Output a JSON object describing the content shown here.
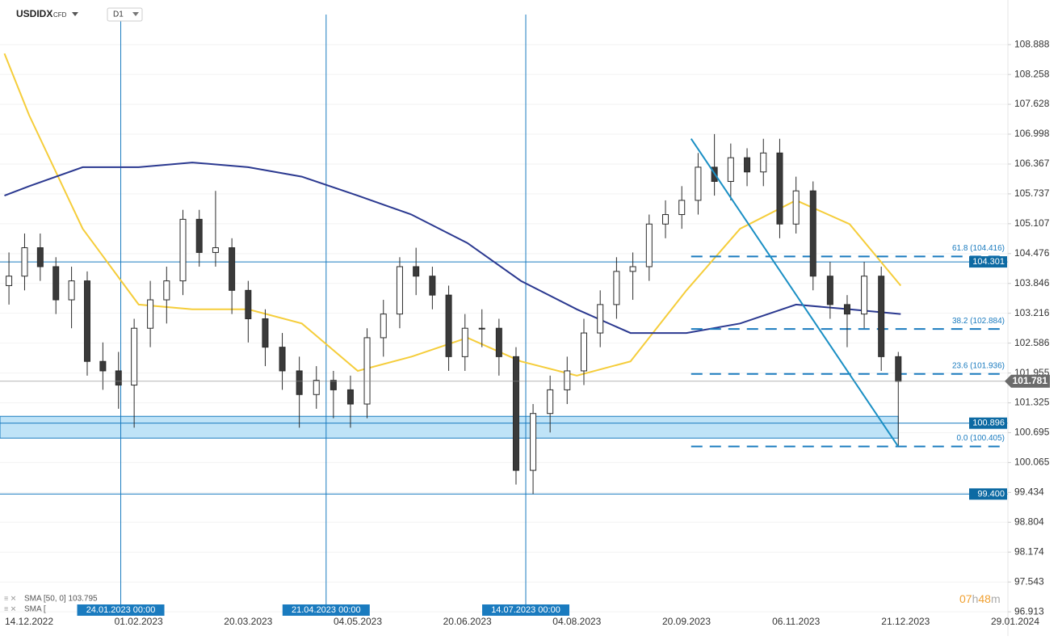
{
  "chart_data": {
    "type": "candlestick",
    "title": "USDIDX",
    "subtitle": "CFD",
    "timeframe": "D1",
    "x": [
      "05.12.2022",
      "12.12.2022",
      "19.12.2022",
      "26.12.2022",
      "02.01.2023",
      "09.01.2023",
      "16.01.2023",
      "23.01.2023",
      "30.01.2023",
      "06.02.2023",
      "13.02.2023",
      "20.02.2023",
      "27.02.2023",
      "06.03.2023",
      "13.03.2023",
      "20.03.2023",
      "27.03.2023",
      "03.04.2023",
      "10.04.2023",
      "17.04.2023",
      "24.04.2023",
      "01.05.2023",
      "08.05.2023",
      "15.05.2023",
      "22.05.2023",
      "29.05.2023",
      "05.06.2023",
      "12.06.2023",
      "19.06.2023",
      "26.06.2023",
      "03.07.2023",
      "10.07.2023",
      "17.07.2023",
      "24.07.2023",
      "31.07.2023",
      "07.08.2023",
      "14.08.2023",
      "21.08.2023",
      "28.08.2023",
      "04.09.2023",
      "11.09.2023",
      "18.09.2023",
      "25.09.2023",
      "02.10.2023",
      "09.10.2023",
      "16.10.2023",
      "23.10.2023",
      "30.10.2023",
      "06.11.2023",
      "13.11.2023",
      "20.11.2023",
      "27.11.2023",
      "04.12.2023",
      "11.12.2023",
      "18.12.2023"
    ],
    "open": [
      103.8,
      104.0,
      104.6,
      104.2,
      103.5,
      103.9,
      102.2,
      102.0,
      101.7,
      102.9,
      103.5,
      103.9,
      105.2,
      104.5,
      104.6,
      103.7,
      103.1,
      102.5,
      102.0,
      101.5,
      101.8,
      101.6,
      101.3,
      102.7,
      103.2,
      104.2,
      104.0,
      103.6,
      102.3,
      102.9,
      102.9,
      102.3,
      99.9,
      101.1,
      101.6,
      102.0,
      102.8,
      103.4,
      104.1,
      104.2,
      105.1,
      105.3,
      105.6,
      106.3,
      106.0,
      106.5,
      106.2,
      106.6,
      105.1,
      105.8,
      104.0,
      103.4,
      103.2,
      104.0,
      102.3
    ],
    "high": [
      104.5,
      104.9,
      104.9,
      104.4,
      104.2,
      104.1,
      102.6,
      102.4,
      103.1,
      103.9,
      104.2,
      105.4,
      105.4,
      105.8,
      104.8,
      103.9,
      103.3,
      102.8,
      102.3,
      102.1,
      102.0,
      101.9,
      102.9,
      103.5,
      104.4,
      104.6,
      104.2,
      103.8,
      103.2,
      103.3,
      103.1,
      102.5,
      101.3,
      101.9,
      102.3,
      103.1,
      103.7,
      104.4,
      104.5,
      105.3,
      105.6,
      105.9,
      106.6,
      107.0,
      106.8,
      106.7,
      106.9,
      106.9,
      106.1,
      106.0,
      104.3,
      103.6,
      104.3,
      104.2,
      102.4
    ],
    "low": [
      103.4,
      103.7,
      103.9,
      103.2,
      102.9,
      101.9,
      101.6,
      101.2,
      100.8,
      102.5,
      103.0,
      103.6,
      104.2,
      104.2,
      103.2,
      102.6,
      102.1,
      101.6,
      100.8,
      101.2,
      101.0,
      100.8,
      101.0,
      102.3,
      102.9,
      103.6,
      103.3,
      102.0,
      102.0,
      102.5,
      101.9,
      99.6,
      99.4,
      100.7,
      101.3,
      101.7,
      102.5,
      103.1,
      103.5,
      103.9,
      104.8,
      105.0,
      105.3,
      105.7,
      105.6,
      105.9,
      105.9,
      104.8,
      104.9,
      103.7,
      103.1,
      102.5,
      102.9,
      102.0,
      100.4
    ],
    "close": [
      104.0,
      104.6,
      104.2,
      103.5,
      103.9,
      102.2,
      102.0,
      101.7,
      102.9,
      103.5,
      103.9,
      105.2,
      104.5,
      104.6,
      103.7,
      103.1,
      102.5,
      102.0,
      101.5,
      101.8,
      101.6,
      101.3,
      102.7,
      103.2,
      104.2,
      104.0,
      103.6,
      102.3,
      102.9,
      102.9,
      102.3,
      99.9,
      101.1,
      101.6,
      102.0,
      102.8,
      103.4,
      104.1,
      104.2,
      105.1,
      105.3,
      105.6,
      106.3,
      106.0,
      106.5,
      106.2,
      106.6,
      105.1,
      105.8,
      104.0,
      103.4,
      103.2,
      104.0,
      102.3,
      101.78
    ],
    "up_color": "#ffffff",
    "down_color": "#3a3a3a",
    "wick_color": "#2b2b2b",
    "overlays": [
      {
        "name": "SMA [50, 0] 103.795",
        "color": "#f5cd3a",
        "x": [
          "03.12.2022",
          "14.12.2022",
          "07.01.2023",
          "01.02.2023",
          "24.02.2023",
          "20.03.2023",
          "11.04.2023",
          "04.05.2023",
          "27.05.2023",
          "20.06.2023",
          "12.07.2023",
          "04.08.2023",
          "27.08.2023",
          "20.09.2023",
          "13.10.2023",
          "06.11.2023",
          "28.11.2023",
          "19.12.2023"
        ],
        "values": [
          108.7,
          107.4,
          105.0,
          103.4,
          103.3,
          103.3,
          103.0,
          102.0,
          102.3,
          102.7,
          102.2,
          101.9,
          102.2,
          103.7,
          105.0,
          105.6,
          105.1,
          103.8
        ]
      },
      {
        "name": "SMA [",
        "color": "#2b3990",
        "x": [
          "03.12.2022",
          "14.12.2022",
          "07.01.2023",
          "01.02.2023",
          "24.02.2023",
          "20.03.2023",
          "11.04.2023",
          "04.05.2023",
          "27.05.2023",
          "20.06.2023",
          "12.07.2023",
          "04.08.2023",
          "27.08.2023",
          "20.09.2023",
          "13.10.2023",
          "06.11.2023",
          "28.11.2023",
          "19.12.2023"
        ],
        "values": [
          105.7,
          105.9,
          106.3,
          106.3,
          106.4,
          106.3,
          106.1,
          105.7,
          105.3,
          104.7,
          103.9,
          103.3,
          102.8,
          102.8,
          103.0,
          103.4,
          103.3,
          103.2
        ]
      }
    ],
    "levels": [
      104.301,
      100.896,
      {
        "value": 99.4,
        "label": "99.400"
      }
    ],
    "level_color": "#1a7bbf",
    "current_price": 101.781,
    "zone": {
      "from": 100.58,
      "to": 101.04,
      "end": "18.12.2023",
      "color": "#bfe3f7"
    },
    "fibonacci": {
      "start": "22.09.2023",
      "color": "#1a7bbf",
      "levels": [
        {
          "value": 104.416,
          "label": "61.8 (104.416)"
        },
        {
          "value": 102.884,
          "label": "38.2 (102.884)"
        },
        {
          "value": 101.936,
          "label": "23.6 (101.936)"
        },
        {
          "value": 100.405,
          "label": "0.0 (100.405)"
        }
      ]
    },
    "trendline": {
      "x": [
        "22.09.2023",
        "18.12.2023"
      ],
      "y": [
        106.9,
        100.4
      ],
      "color": "#1a8fc4"
    },
    "vertical_lines": [
      {
        "value": "24.01.2023",
        "label": "24.01.2023 00:00"
      },
      {
        "value": "21.04.2023",
        "label": "21.04.2023 00:00"
      },
      {
        "value": "14.07.2023",
        "label": "14.07.2023 00:00"
      }
    ],
    "xlim": [
      "01.12.2022",
      "26.01.2024"
    ],
    "xticks": [
      "14.12.2022",
      "01.02.2023",
      "20.03.2023",
      "04.05.2023",
      "20.06.2023",
      "04.08.2023",
      "20.09.2023",
      "06.11.2023",
      "21.12.2023",
      "29.01.2024"
    ],
    "ylim": [
      96.83,
      109.83
    ],
    "yticks": [
      108.888,
      108.258,
      107.628,
      106.998,
      106.367,
      105.737,
      105.107,
      104.476,
      103.846,
      103.216,
      102.586,
      101.955,
      101.325,
      100.695,
      100.065,
      99.434,
      98.804,
      98.174,
      97.543,
      96.913
    ],
    "grid": true,
    "timer": {
      "hours": "07",
      "h": "h",
      "minutes": "48",
      "m": "m"
    }
  }
}
